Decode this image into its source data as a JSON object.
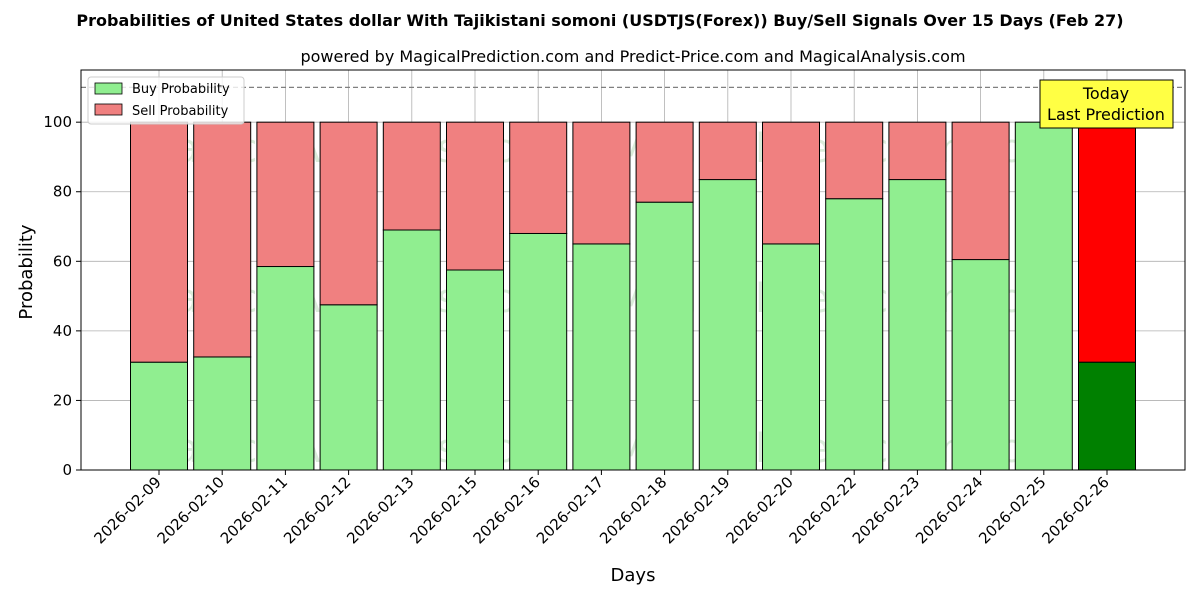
{
  "chart_data": {
    "type": "bar",
    "stacked": true,
    "title": "Probabilities of United States dollar With Tajikistani somoni (USDTJS(Forex)) Buy/Sell Signals Over 15 Days (Feb 27)",
    "subtitle": "powered by MagicalPrediction.com and Predict-Price.com and MagicalAnalysis.com",
    "xlabel": "Days",
    "ylabel": "Probability",
    "ylim": [
      0,
      115
    ],
    "yticks": [
      0,
      20,
      40,
      60,
      80,
      100
    ],
    "reference_line": 110,
    "grid": true,
    "legend_position": "top-left",
    "categories": [
      "2026-02-09",
      "2026-02-10",
      "2026-02-11",
      "2026-02-12",
      "2026-02-13",
      "2026-02-15",
      "2026-02-16",
      "2026-02-17",
      "2026-02-18",
      "2026-02-19",
      "2026-02-20",
      "2026-02-22",
      "2026-02-23",
      "2026-02-24",
      "2026-02-25",
      "2026-02-26"
    ],
    "series": [
      {
        "name": "Buy Probability",
        "values": [
          31,
          32.5,
          58.5,
          47.5,
          69,
          57.5,
          68,
          65,
          77,
          83.5,
          65,
          78,
          83.5,
          60.5,
          100,
          31
        ]
      },
      {
        "name": "Sell Probability",
        "values": [
          69,
          67.5,
          41.5,
          52.5,
          31,
          42.5,
          32,
          35,
          23,
          16.5,
          35,
          22,
          16.5,
          39.5,
          0,
          69
        ]
      }
    ],
    "colors": {
      "buy": "#90ee90",
      "sell": "#f08080",
      "buy_highlight": "#008000",
      "sell_highlight": "#ff0000",
      "annotation_bg": "#ffff44"
    },
    "highlight_index": 15,
    "annotation": {
      "line1": "Today",
      "line2": "Last Prediction"
    },
    "watermarks": [
      "MagicalAnalysis.com",
      "MagicalPrediction.com"
    ]
  }
}
